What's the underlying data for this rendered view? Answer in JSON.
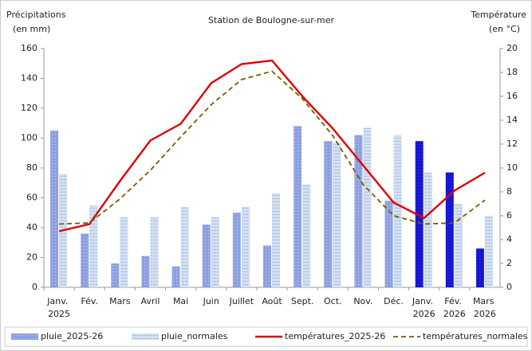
{
  "chart_data": {
    "type": "bar_line",
    "title": "Station de Boulogne-sur-mer",
    "y_label": [
      "Précipitations",
      "(en mm)"
    ],
    "y2_label": [
      "Température",
      "(en °C)"
    ],
    "categories": [
      "Janv. 2025",
      "Fév.",
      "Mars",
      "Avril",
      "Mai",
      "Juin",
      "Juillet",
      "Août",
      "Sept.",
      "Oct.",
      "Nov.",
      "Déc.",
      "Janv. 2026",
      "Fév. 2026",
      "Mars 2026"
    ],
    "ylim": [
      0,
      160
    ],
    "yticks": [
      0,
      20,
      40,
      60,
      80,
      100,
      120,
      140,
      160
    ],
    "y2lim": [
      0,
      20
    ],
    "y2ticks": [
      0,
      2,
      4,
      6,
      8,
      10,
      12,
      14,
      16,
      18,
      20
    ],
    "legend": "bottom",
    "series": [
      {
        "name": "pluie_2025-26",
        "kind": "bar",
        "color": "#8c9fe0",
        "point_colors": [
          "#8c9fe0",
          "#8c9fe0",
          "#8c9fe0",
          "#8c9fe0",
          "#8c9fe0",
          "#8c9fe0",
          "#8c9fe0",
          "#8c9fe0",
          "#8c9fe0",
          "#8c9fe0",
          "#8c9fe0",
          "#8c9fe0",
          "#1414d2",
          "#1414d2",
          "#1414d2"
        ],
        "values": [
          105,
          36,
          16,
          21,
          14,
          42,
          50,
          28,
          108,
          98,
          102,
          58,
          98,
          77,
          26
        ]
      },
      {
        "name": "pluie_normales",
        "kind": "bar",
        "color": "#d3e0f2",
        "values": [
          76,
          55,
          47,
          47,
          54,
          47,
          54,
          63,
          69,
          97,
          107,
          102,
          77,
          56,
          48
        ]
      },
      {
        "name": "températures_2025-26",
        "kind": "line",
        "axis": "y2",
        "color": "#e00000",
        "dashed": false,
        "values": [
          4.7,
          5.3,
          8.9,
          12.3,
          13.7,
          17.1,
          18.7,
          19.0,
          16.0,
          13.3,
          10.2,
          7.1,
          5.8,
          8.1,
          9.6
        ]
      },
      {
        "name": "températures_normales",
        "kind": "line",
        "axis": "y2",
        "color": "#7a5a00",
        "dashed": true,
        "values": [
          5.3,
          5.4,
          7.4,
          9.8,
          12.6,
          15.3,
          17.4,
          18.1,
          15.8,
          12.7,
          8.6,
          6.0,
          5.3,
          5.4,
          7.3
        ]
      }
    ]
  }
}
